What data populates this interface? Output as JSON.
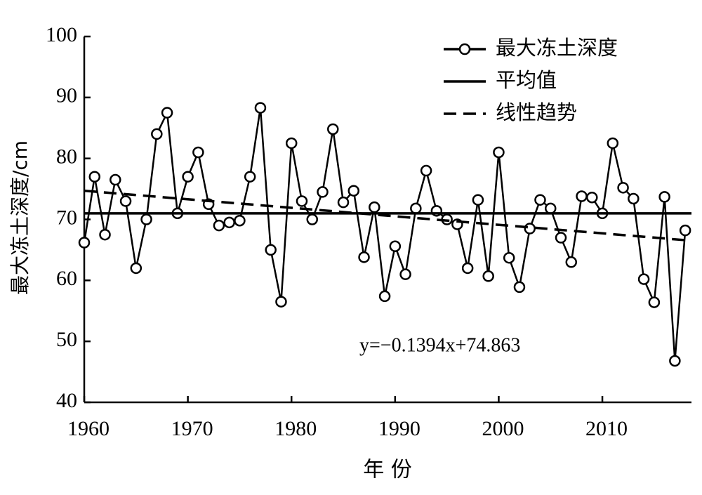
{
  "chart_data": {
    "type": "line",
    "y_label": "最大冻土深度/cm",
    "x_label": "年 份",
    "annotation": "y=−0.1394x+74.863",
    "xlim": [
      1960,
      2018.6
    ],
    "xticks": [
      1960,
      1970,
      1980,
      1990,
      2000,
      2010
    ],
    "ylim": [
      40,
      100
    ],
    "yticks": [
      40,
      50,
      60,
      70,
      80,
      90,
      100
    ],
    "legend": "upper right",
    "series": [
      {
        "name": "最大冻土深度",
        "color": "#000000",
        "style": "marker",
        "x": [
          1960,
          1961,
          1962,
          1963,
          1964,
          1965,
          1966,
          1967,
          1968,
          1969,
          1970,
          1971,
          1972,
          1973,
          1974,
          1975,
          1976,
          1977,
          1978,
          1979,
          1980,
          1981,
          1982,
          1983,
          1984,
          1985,
          1986,
          1987,
          1988,
          1989,
          1990,
          1991,
          1992,
          1993,
          1994,
          1995,
          1996,
          1997,
          1998,
          1999,
          2000,
          2001,
          2002,
          2003,
          2004,
          2005,
          2006,
          2007,
          2008,
          2009,
          2010,
          2011,
          2012,
          2013,
          2014,
          2015,
          2016,
          2017,
          2018
        ],
        "values": [
          66.2,
          77,
          67.5,
          76.5,
          73,
          62,
          70,
          84,
          87.5,
          71,
          77,
          81,
          72.5,
          69,
          69.5,
          69.8,
          77,
          88.3,
          65,
          56.5,
          82.5,
          73,
          70,
          74.5,
          84.8,
          72.8,
          74.7,
          63.8,
          72,
          57.4,
          65.6,
          61,
          71.8,
          78,
          71.4,
          70,
          69.2,
          62,
          73.2,
          60.7,
          81,
          63.7,
          58.9,
          68.5,
          73.2,
          71.8,
          67,
          63,
          73.8,
          73.6,
          71,
          82.5,
          75.2,
          73.4,
          60.2,
          56.4,
          73.7,
          46.8,
          68.2
        ]
      },
      {
        "name": "平均值",
        "color": "#000000",
        "style": "solid",
        "x": [
          1960,
          2018.6
        ],
        "values": [
          71,
          71
        ]
      },
      {
        "name": "线性趋势",
        "color": "#000000",
        "style": "dashed",
        "x": [
          1960,
          2018
        ],
        "values": [
          74.7,
          66.6
        ]
      }
    ]
  }
}
